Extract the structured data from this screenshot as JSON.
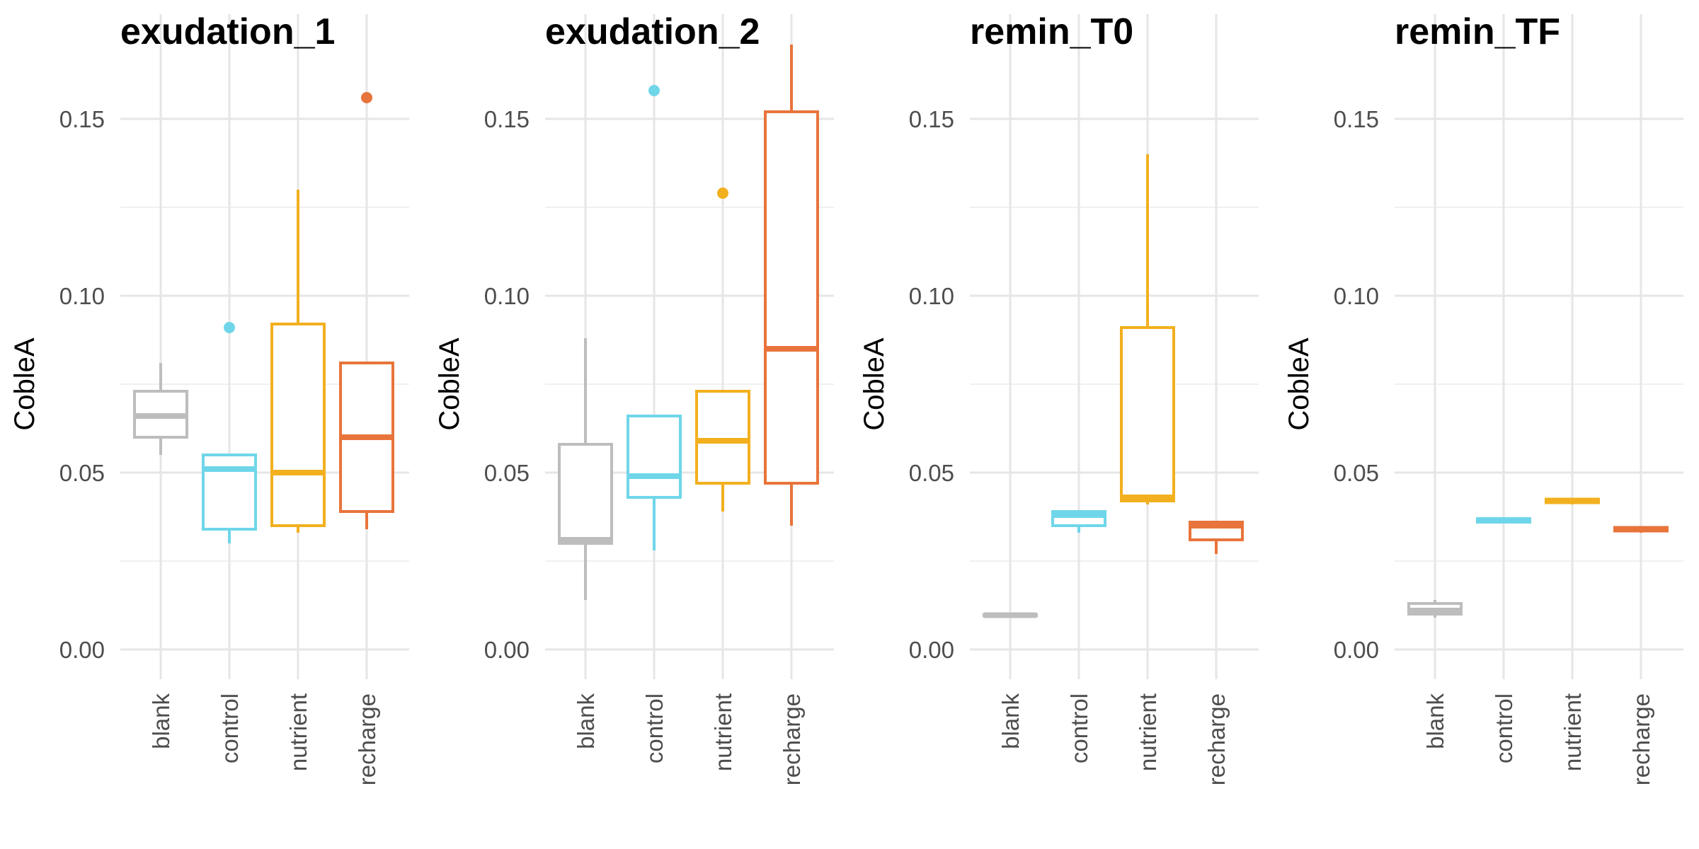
{
  "colors": {
    "blank": "#bdbdbd",
    "control": "#6fd6ea",
    "nutrient": "#f2b01e",
    "recharge": "#e8743b"
  },
  "chart_data": [
    {
      "type": "box",
      "title": "exudation_1",
      "ylabel": "CobleA",
      "xlabel": "",
      "ylim": [
        -0.008,
        0.172
      ],
      "yticks": [
        "0.00",
        "0.05",
        "0.10",
        "0.15"
      ],
      "categories": [
        "blank",
        "control",
        "nutrient",
        "recharge"
      ],
      "boxes": [
        {
          "category": "blank",
          "whisker_low": 0.055,
          "q1": 0.06,
          "median": 0.066,
          "q3": 0.073,
          "whisker_high": 0.081,
          "outliers": []
        },
        {
          "category": "control",
          "whisker_low": 0.03,
          "q1": 0.034,
          "median": 0.051,
          "q3": 0.055,
          "whisker_high": 0.055,
          "outliers": [
            0.091
          ]
        },
        {
          "category": "nutrient",
          "whisker_low": 0.033,
          "q1": 0.035,
          "median": 0.05,
          "q3": 0.092,
          "whisker_high": 0.13,
          "outliers": []
        },
        {
          "category": "recharge",
          "whisker_low": 0.034,
          "q1": 0.039,
          "median": 0.06,
          "q3": 0.081,
          "whisker_high": 0.081,
          "outliers": [
            0.156
          ]
        }
      ]
    },
    {
      "type": "box",
      "title": "exudation_2",
      "ylabel": "CobleA",
      "xlabel": "",
      "ylim": [
        -0.008,
        0.172
      ],
      "yticks": [
        "0.00",
        "0.05",
        "0.10",
        "0.15"
      ],
      "categories": [
        "blank",
        "control",
        "nutrient",
        "recharge"
      ],
      "boxes": [
        {
          "category": "blank",
          "whisker_low": 0.014,
          "q1": 0.03,
          "median": 0.031,
          "q3": 0.058,
          "whisker_high": 0.088,
          "outliers": []
        },
        {
          "category": "control",
          "whisker_low": 0.028,
          "q1": 0.043,
          "median": 0.049,
          "q3": 0.066,
          "whisker_high": 0.066,
          "outliers": [
            0.158
          ]
        },
        {
          "category": "nutrient",
          "whisker_low": 0.039,
          "q1": 0.047,
          "median": 0.059,
          "q3": 0.073,
          "whisker_high": 0.073,
          "outliers": [
            0.129
          ]
        },
        {
          "category": "recharge",
          "whisker_low": 0.035,
          "q1": 0.047,
          "median": 0.085,
          "q3": 0.152,
          "whisker_high": 0.171,
          "outliers": []
        }
      ]
    },
    {
      "type": "box",
      "title": "remin_T0",
      "ylabel": "CobleA",
      "xlabel": "",
      "ylim": [
        -0.008,
        0.172
      ],
      "yticks": [
        "0.00",
        "0.05",
        "0.10",
        "0.15"
      ],
      "categories": [
        "blank",
        "control",
        "nutrient",
        "recharge"
      ],
      "boxes": [
        {
          "category": "blank",
          "whisker_low": 0.0095,
          "q1": 0.0095,
          "median": 0.0097,
          "q3": 0.0099,
          "whisker_high": 0.0099,
          "outliers": []
        },
        {
          "category": "control",
          "whisker_low": 0.033,
          "q1": 0.035,
          "median": 0.038,
          "q3": 0.039,
          "whisker_high": 0.039,
          "outliers": []
        },
        {
          "category": "nutrient",
          "whisker_low": 0.041,
          "q1": 0.042,
          "median": 0.043,
          "q3": 0.091,
          "whisker_high": 0.14,
          "outliers": []
        },
        {
          "category": "recharge",
          "whisker_low": 0.027,
          "q1": 0.031,
          "median": 0.035,
          "q3": 0.036,
          "whisker_high": 0.036,
          "outliers": []
        }
      ]
    },
    {
      "type": "box",
      "title": "remin_TF",
      "ylabel": "CobleA",
      "xlabel": "",
      "ylim": [
        -0.008,
        0.172
      ],
      "yticks": [
        "0.00",
        "0.05",
        "0.10",
        "0.15"
      ],
      "categories": [
        "blank",
        "control",
        "nutrient",
        "recharge"
      ],
      "boxes": [
        {
          "category": "blank",
          "whisker_low": 0.009,
          "q1": 0.01,
          "median": 0.011,
          "q3": 0.013,
          "whisker_high": 0.014,
          "outliers": []
        },
        {
          "category": "control",
          "whisker_low": 0.036,
          "q1": 0.036,
          "median": 0.0365,
          "q3": 0.037,
          "whisker_high": 0.037,
          "outliers": []
        },
        {
          "category": "nutrient",
          "whisker_low": 0.041,
          "q1": 0.0415,
          "median": 0.042,
          "q3": 0.0425,
          "whisker_high": 0.0425,
          "outliers": []
        },
        {
          "category": "recharge",
          "whisker_low": 0.033,
          "q1": 0.0335,
          "median": 0.034,
          "q3": 0.0345,
          "whisker_high": 0.0345,
          "outliers": []
        }
      ]
    }
  ]
}
